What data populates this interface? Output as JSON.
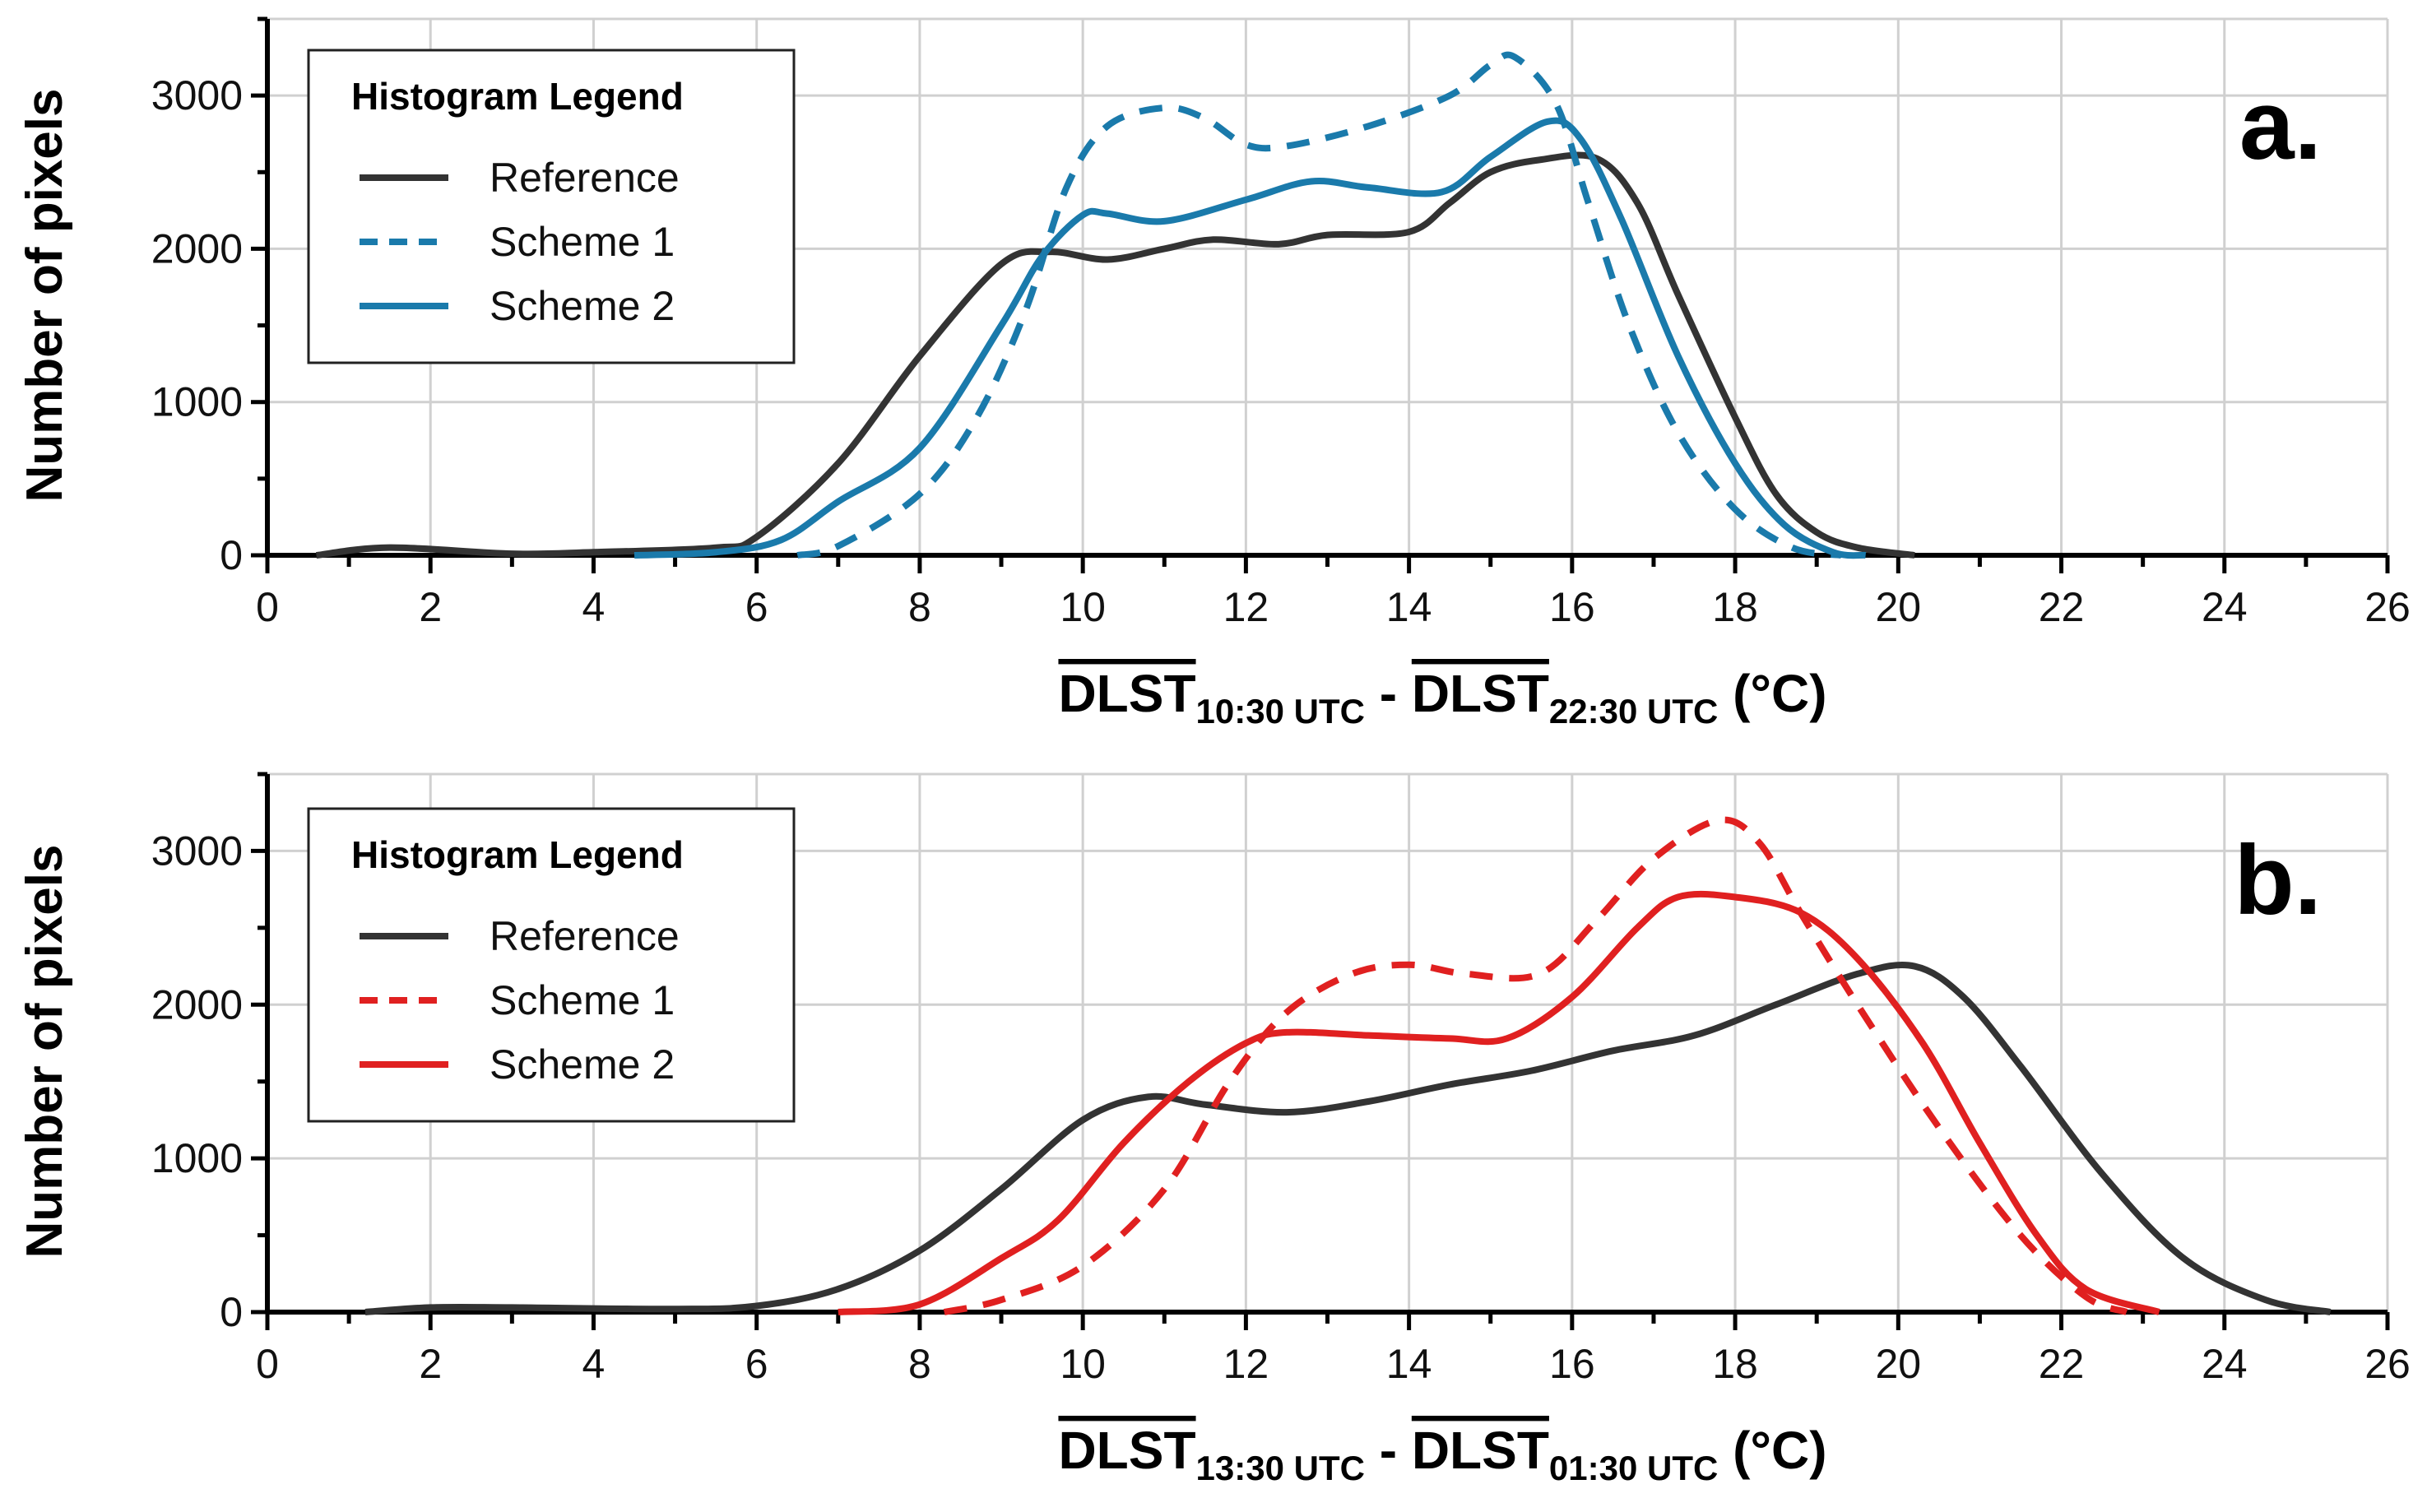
{
  "chart_data": [
    {
      "type": "line",
      "panel_label": "a.",
      "ylabel": "Number of pixels",
      "xlabel": {
        "term1": "DLST",
        "sub1": "10:30 UTC",
        "sep": " - ",
        "term2": "DLST",
        "sub2": "22:30 UTC",
        "unit": " (°C)"
      },
      "xlim": [
        0,
        26
      ],
      "ylim": [
        0,
        3500
      ],
      "xticks": [
        "0",
        "2",
        "4",
        "6",
        "8",
        "10",
        "12",
        "14",
        "16",
        "18",
        "20",
        "22",
        "24",
        "26"
      ],
      "yticks": [
        "0",
        "1000",
        "2000",
        "3000"
      ],
      "grid": true,
      "legend": {
        "title": "Histogram Legend",
        "placement": "top-left"
      },
      "series": [
        {
          "name": "Reference",
          "color": "#333333",
          "dash": false,
          "x": [
            0.6,
            1.5,
            3,
            4,
            5.5,
            6,
            7,
            8,
            9,
            9.6,
            10.3,
            11,
            11.6,
            12.4,
            13,
            14,
            14.5,
            15,
            15.6,
            16.3,
            16.8,
            17.3,
            18,
            18.5,
            19,
            19.5,
            20.2
          ],
          "y": [
            0,
            50,
            10,
            20,
            50,
            120,
            600,
            1300,
            1900,
            1980,
            1930,
            2000,
            2060,
            2030,
            2090,
            2110,
            2300,
            2500,
            2580,
            2590,
            2300,
            1700,
            900,
            400,
            150,
            50,
            0
          ]
        },
        {
          "name": "Scheme 1",
          "color": "#1a7aab",
          "dash": true,
          "x": [
            6.5,
            7,
            8,
            8.7,
            9.3,
            9.8,
            10.3,
            11,
            11.5,
            12,
            12.5,
            13.5,
            14.5,
            15,
            15.3,
            15.8,
            16.2,
            16.7,
            17.3,
            18,
            18.7,
            19.3
          ],
          "y": [
            0,
            60,
            400,
            900,
            1600,
            2400,
            2800,
            2920,
            2850,
            2680,
            2670,
            2800,
            3000,
            3200,
            3250,
            2950,
            2300,
            1500,
            800,
            300,
            50,
            0
          ]
        },
        {
          "name": "Scheme 2",
          "color": "#1a7aab",
          "dash": false,
          "x": [
            4.5,
            5.5,
            6.3,
            7,
            8,
            9,
            9.5,
            10,
            10.3,
            11,
            12,
            12.8,
            13.5,
            14.4,
            15,
            15.7,
            16.1,
            16.6,
            17.3,
            18,
            18.6,
            19.2,
            19.6
          ],
          "y": [
            0,
            20,
            100,
            350,
            700,
            1500,
            1950,
            2220,
            2230,
            2180,
            2320,
            2440,
            2400,
            2370,
            2600,
            2830,
            2720,
            2200,
            1300,
            600,
            200,
            20,
            0
          ]
        }
      ]
    },
    {
      "type": "line",
      "panel_label": "b.",
      "ylabel": "Number of pixels",
      "xlabel": {
        "term1": "DLST",
        "sub1": "13:30 UTC",
        "sep": " - ",
        "term2": "DLST",
        "sub2": "01:30 UTC",
        "unit": " (°C)"
      },
      "xlim": [
        0,
        26
      ],
      "ylim": [
        0,
        3500
      ],
      "xticks": [
        "0",
        "2",
        "4",
        "6",
        "8",
        "10",
        "12",
        "14",
        "16",
        "18",
        "20",
        "22",
        "24",
        "26"
      ],
      "yticks": [
        "0",
        "1000",
        "2000",
        "3000"
      ],
      "grid": true,
      "legend": {
        "title": "Histogram Legend",
        "placement": "top-left"
      },
      "series": [
        {
          "name": "Reference",
          "color": "#333333",
          "dash": false,
          "x": [
            1.2,
            2,
            3,
            5,
            6,
            7,
            8,
            9,
            10,
            10.8,
            11.5,
            12.5,
            13.5,
            14.5,
            15.5,
            16.5,
            17.5,
            18.5,
            19.5,
            20.2,
            20.8,
            21.5,
            22.5,
            23.5,
            24.5,
            25.3
          ],
          "y": [
            0,
            30,
            30,
            20,
            40,
            150,
            400,
            800,
            1250,
            1400,
            1350,
            1300,
            1370,
            1480,
            1570,
            1700,
            1800,
            2000,
            2200,
            2250,
            2050,
            1600,
            900,
            350,
            80,
            0
          ]
        },
        {
          "name": "Scheme 1",
          "color": "#e02020",
          "dash": true,
          "x": [
            8.3,
            9,
            10,
            11,
            11.8,
            12.5,
            13.3,
            14,
            14.7,
            15.6,
            16.3,
            17,
            17.8,
            18.3,
            18.8,
            19.5,
            20.5,
            21.5,
            22.3,
            22.8
          ],
          "y": [
            0,
            80,
            300,
            800,
            1500,
            1950,
            2200,
            2260,
            2200,
            2200,
            2550,
            2950,
            3200,
            3050,
            2600,
            2000,
            1200,
            500,
            100,
            0
          ]
        },
        {
          "name": "Scheme 2",
          "color": "#e02020",
          "dash": false,
          "x": [
            7,
            8,
            9,
            9.7,
            10.5,
            11.3,
            12,
            12.5,
            13.5,
            14.5,
            15.2,
            16,
            16.8,
            17.3,
            18,
            18.8,
            19.5,
            20.3,
            21,
            21.7,
            22.3,
            23.2
          ],
          "y": [
            0,
            50,
            350,
            600,
            1100,
            1500,
            1750,
            1820,
            1800,
            1780,
            1780,
            2050,
            2500,
            2700,
            2700,
            2600,
            2300,
            1750,
            1100,
            500,
            150,
            0
          ]
        }
      ]
    }
  ]
}
